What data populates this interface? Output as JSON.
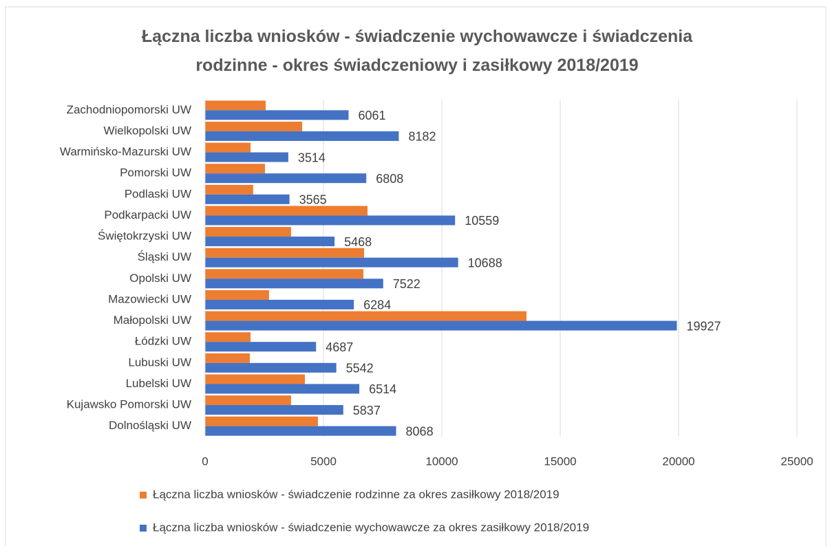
{
  "chart_data": {
    "type": "bar",
    "orientation": "horizontal",
    "title": "Łączna liczba wniosków - świadczenie wychowawcze i świadczenia rodzinne - okres świadczeniowy i zasiłkowy 2018/2019",
    "categories": [
      "Zachodniopomorski UW",
      "Wielkopolski UW",
      "Warmińsko-Mazurski UW",
      "Pomorski UW",
      "Podlaski UW",
      "Podkarpacki UW",
      "Świętokrzyski UW",
      "Śląski UW",
      "Opolski UW",
      "Mazowiecki UW",
      "Małopolski UW",
      "Łódzki UW",
      "Lubuski UW",
      "Lubelski UW",
      "Kujawsko Pomorski UW",
      "Dolnośląski UW"
    ],
    "series": [
      {
        "name": "Łączna liczba wniosków - świadczenie rodzinne za okres zasiłkowy 2018/2019",
        "color": "#ed7d31",
        "values": [
          2560,
          4100,
          1920,
          2530,
          2030,
          6860,
          3630,
          6715,
          6685,
          2700,
          13575,
          1920,
          1890,
          4215,
          3630,
          4765
        ]
      },
      {
        "name": "Łączna liczba wniosków - świadczenie wychowawcze za okres zasiłkowy 2018/2019",
        "color": "#4472c4",
        "values": [
          6061,
          8182,
          3514,
          6808,
          3565,
          10559,
          5468,
          10688,
          7522,
          6284,
          19927,
          4687,
          5542,
          6514,
          5837,
          8068
        ]
      }
    ],
    "xlim": [
      0,
      25000
    ],
    "xticks": [
      0,
      5000,
      10000,
      15000,
      20000,
      25000
    ],
    "grid": true
  }
}
